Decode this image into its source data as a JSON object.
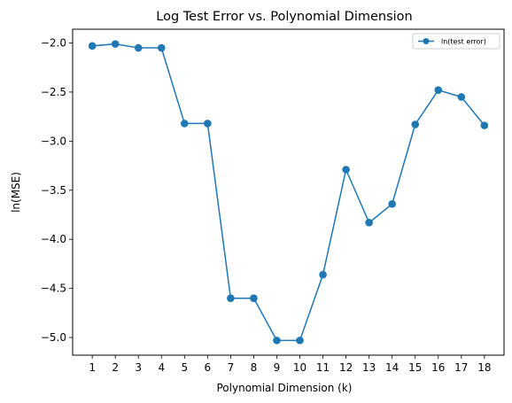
{
  "chart_data": {
    "type": "line",
    "title": "Log Test Error vs. Polynomial Dimension",
    "xlabel": "Polynomial Dimension (k)",
    "ylabel": "ln(MSE)",
    "x": [
      1,
      2,
      3,
      4,
      5,
      6,
      7,
      8,
      9,
      10,
      11,
      12,
      13,
      14,
      15,
      16,
      17,
      18
    ],
    "series": [
      {
        "name": "ln(test error)",
        "color": "#1f77b4",
        "marker": "circle",
        "values": [
          -2.03,
          -2.01,
          -2.05,
          -2.05,
          -2.82,
          -2.82,
          -4.6,
          -4.6,
          -5.03,
          -5.03,
          -4.36,
          -3.29,
          -3.83,
          -3.64,
          -2.83,
          -2.48,
          -2.55,
          -2.84
        ]
      }
    ],
    "xlim": [
      0.15,
      18.85
    ],
    "ylim": [
      -5.18,
      -1.86
    ],
    "xticks": [
      "1",
      "2",
      "3",
      "4",
      "5",
      "6",
      "7",
      "8",
      "9",
      "10",
      "11",
      "12",
      "13",
      "14",
      "15",
      "16",
      "17",
      "18"
    ],
    "yticks": [
      "−2.0",
      "−2.5",
      "−3.0",
      "−3.5",
      "−4.0",
      "−4.5",
      "−5.0"
    ],
    "ytick_values": [
      -2.0,
      -2.5,
      -3.0,
      -3.5,
      -4.0,
      -4.5,
      -5.0
    ],
    "grid": false,
    "legend": "top-right"
  }
}
